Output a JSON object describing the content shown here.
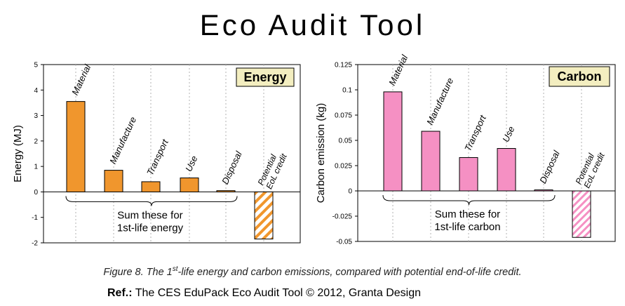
{
  "page": {
    "title": "Eco Audit Tool",
    "caption_pre": "Figure 8. The 1",
    "caption_sup": "st",
    "caption_post": "-life energy and carbon emissions, compared with potential end-of-life credit.",
    "ref_label": "Ref.:",
    "ref_text": " The CES EduPack Eco Audit Tool  © 2012, Granta Design"
  },
  "chart_data": [
    {
      "type": "bar",
      "badge": "Energy",
      "ylabel": "Energy (MJ)",
      "ylim": [
        -2,
        5
      ],
      "yticks": [
        5,
        4,
        3,
        2,
        1,
        0,
        -1,
        -2
      ],
      "ytick_labels": [
        "5",
        "4",
        "3",
        "2",
        "1",
        "0",
        "-1",
        "-2"
      ],
      "categories": [
        "Material",
        "Manufacture",
        "Transport",
        "Use",
        "Disposal",
        "Potential EoL credit"
      ],
      "values": [
        3.55,
        0.85,
        0.4,
        0.55,
        0.05,
        -1.85
      ],
      "bar_color": "#f0962d",
      "brace_text_1": "Sum these for",
      "brace_text_2": "1st-life energy",
      "grid": "vertical dashed"
    },
    {
      "type": "bar",
      "badge": "Carbon",
      "ylabel": "Carbon emission (kg)",
      "ylim": [
        -0.05,
        0.125
      ],
      "yticks": [
        0.125,
        0.1,
        0.075,
        0.05,
        0.025,
        0,
        -0.025,
        -0.05
      ],
      "ytick_labels": [
        "0.125",
        "0.1",
        "0.075",
        "0.05",
        "0.025",
        "0",
        "-0.025",
        "-0.05"
      ],
      "categories": [
        "Material",
        "Manufacture",
        "Transport",
        "Use",
        "Disposal",
        "Potential EoL credit"
      ],
      "values": [
        0.098,
        0.059,
        0.033,
        0.042,
        0.001,
        -0.046
      ],
      "bar_color": "#f590c3",
      "brace_text_1": "Sum these for",
      "brace_text_2": "1st-life carbon",
      "grid": "vertical dashed"
    }
  ]
}
